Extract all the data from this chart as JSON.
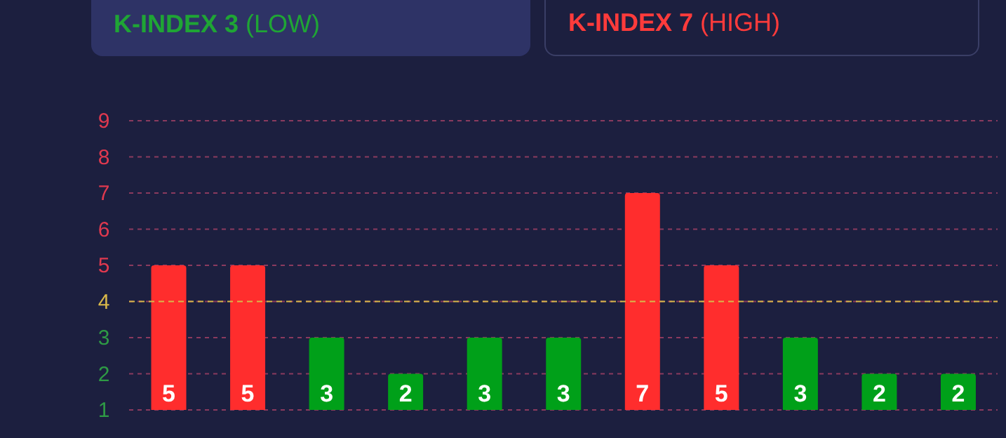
{
  "chart_data": {
    "type": "bar",
    "annotations": [
      "K-INDEX 3 (LOW)",
      "K-INDEX 7 (HIGH)"
    ],
    "categories": [
      null,
      null,
      null,
      null,
      null,
      null,
      null,
      null,
      null,
      null,
      null
    ],
    "values": [
      5,
      5,
      3,
      2,
      3,
      3,
      7,
      5,
      3,
      2,
      2
    ],
    "colors": [
      "#ff2d2d",
      "#ff2d2d",
      "#00a019",
      "#00a019",
      "#00a019",
      "#00a019",
      "#ff2d2d",
      "#ff2d2d",
      "#00a019",
      "#00a019",
      "#00a019"
    ],
    "ylim": [
      1,
      9
    ],
    "yticks": [
      1,
      2,
      3,
      4,
      5,
      6,
      7,
      8,
      9
    ],
    "grid": "y",
    "tick_labels": "y",
    "data_labels": true,
    "ref_lines": [
      {
        "axis": "y",
        "value": 4,
        "label": null,
        "color": "#d9b84a",
        "line_style": "dashed"
      }
    ]
  }
}
